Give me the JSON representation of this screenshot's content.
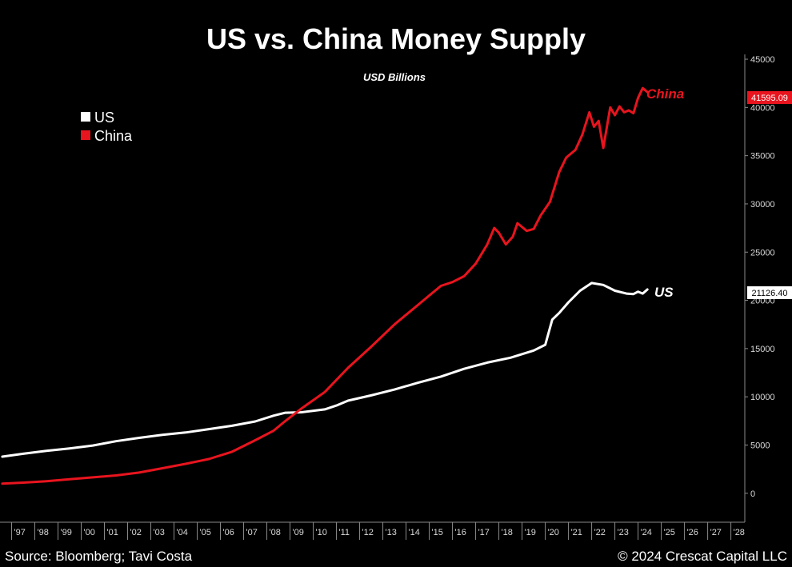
{
  "colors": {
    "background": "#000000",
    "us": "#ffffff",
    "china": "#e8141e",
    "axis": "#8a8a8a",
    "badge_text": "#ffffff"
  },
  "header": {
    "title": "US vs. China Money Supply"
  },
  "footer": {
    "source": "Source: Bloomberg; Tavi Costa",
    "copyright": "© 2024 Crescat Capital LLC"
  },
  "chart_data": {
    "type": "line",
    "title": "US vs. China Money Supply",
    "subtitle": "USD Billions",
    "ylim": [
      -3000,
      45500
    ],
    "xlim": [
      1996.5,
      2028.6
    ],
    "grid": false,
    "legend_position": "top-left",
    "y_ticks": [
      0,
      5000,
      10000,
      15000,
      20000,
      25000,
      30000,
      35000,
      40000,
      45000
    ],
    "x_ticks": [
      {
        "x": 1997,
        "label": "'97"
      },
      {
        "x": 1998,
        "label": "'98"
      },
      {
        "x": 1999,
        "label": "'99"
      },
      {
        "x": 2000,
        "label": "'00"
      },
      {
        "x": 2001,
        "label": "'01"
      },
      {
        "x": 2002,
        "label": "'02"
      },
      {
        "x": 2003,
        "label": "'03"
      },
      {
        "x": 2004,
        "label": "'04"
      },
      {
        "x": 2005,
        "label": "'05"
      },
      {
        "x": 2006,
        "label": "'06"
      },
      {
        "x": 2007,
        "label": "'07"
      },
      {
        "x": 2008,
        "label": "'08"
      },
      {
        "x": 2009,
        "label": "'09"
      },
      {
        "x": 2010,
        "label": "'10"
      },
      {
        "x": 2011,
        "label": "'11"
      },
      {
        "x": 2012,
        "label": "'12"
      },
      {
        "x": 2013,
        "label": "'13"
      },
      {
        "x": 2014,
        "label": "'14"
      },
      {
        "x": 2015,
        "label": "'15"
      },
      {
        "x": 2016,
        "label": "'16"
      },
      {
        "x": 2017,
        "label": "'17"
      },
      {
        "x": 2018,
        "label": "'18"
      },
      {
        "x": 2019,
        "label": "'19"
      },
      {
        "x": 2020,
        "label": "'20"
      },
      {
        "x": 2021,
        "label": "'21"
      },
      {
        "x": 2022,
        "label": "'22"
      },
      {
        "x": 2023,
        "label": "'23"
      },
      {
        "x": 2024,
        "label": "'24"
      },
      {
        "x": 2025,
        "label": "'25"
      },
      {
        "x": 2026,
        "label": "'26"
      },
      {
        "x": 2027,
        "label": "'27"
      },
      {
        "x": 2028,
        "label": "'28"
      }
    ],
    "series": [
      {
        "name": "US",
        "color": "#ffffff",
        "end_label": "US",
        "last_value_label": "21126.40",
        "points": [
          [
            1996.6,
            3800
          ],
          [
            1997.5,
            4100
          ],
          [
            1998.5,
            4400
          ],
          [
            1999.5,
            4650
          ],
          [
            2000.5,
            4950
          ],
          [
            2001.5,
            5400
          ],
          [
            2002.5,
            5750
          ],
          [
            2003.5,
            6050
          ],
          [
            2004.5,
            6300
          ],
          [
            2005.5,
            6650
          ],
          [
            2006.5,
            7000
          ],
          [
            2007.5,
            7450
          ],
          [
            2008.3,
            8050
          ],
          [
            2008.8,
            8350
          ],
          [
            2009.5,
            8400
          ],
          [
            2010.5,
            8700
          ],
          [
            2011.0,
            9100
          ],
          [
            2011.5,
            9600
          ],
          [
            2012.5,
            10150
          ],
          [
            2013.5,
            10750
          ],
          [
            2014.5,
            11450
          ],
          [
            2015.5,
            12100
          ],
          [
            2016.5,
            12900
          ],
          [
            2017.5,
            13550
          ],
          [
            2018.5,
            14050
          ],
          [
            2019.5,
            14800
          ],
          [
            2020.0,
            15400
          ],
          [
            2020.3,
            18000
          ],
          [
            2020.6,
            18700
          ],
          [
            2021.0,
            19800
          ],
          [
            2021.5,
            21000
          ],
          [
            2022.0,
            21800
          ],
          [
            2022.5,
            21600
          ],
          [
            2023.0,
            21000
          ],
          [
            2023.5,
            20700
          ],
          [
            2023.8,
            20650
          ],
          [
            2024.0,
            20900
          ],
          [
            2024.2,
            20700
          ],
          [
            2024.4,
            21126
          ]
        ]
      },
      {
        "name": "China",
        "color": "#e8141e",
        "end_label": "China",
        "last_value_label": "41595.09",
        "points": [
          [
            1996.6,
            1000
          ],
          [
            1997.5,
            1100
          ],
          [
            1998.5,
            1250
          ],
          [
            1999.5,
            1450
          ],
          [
            2000.5,
            1650
          ],
          [
            2001.5,
            1850
          ],
          [
            2002.5,
            2150
          ],
          [
            2003.5,
            2600
          ],
          [
            2004.5,
            3050
          ],
          [
            2005.5,
            3550
          ],
          [
            2006.5,
            4300
          ],
          [
            2007.5,
            5500
          ],
          [
            2008.3,
            6500
          ],
          [
            2008.8,
            7500
          ],
          [
            2009.5,
            8800
          ],
          [
            2010.5,
            10500
          ],
          [
            2011.5,
            13000
          ],
          [
            2012.5,
            15200
          ],
          [
            2013.5,
            17500
          ],
          [
            2014.5,
            19500
          ],
          [
            2015.0,
            20500
          ],
          [
            2015.5,
            21500
          ],
          [
            2016.0,
            21900
          ],
          [
            2016.5,
            22500
          ],
          [
            2017.0,
            23800
          ],
          [
            2017.5,
            25800
          ],
          [
            2017.8,
            27500
          ],
          [
            2018.0,
            27000
          ],
          [
            2018.3,
            25800
          ],
          [
            2018.6,
            26600
          ],
          [
            2018.8,
            28000
          ],
          [
            2019.2,
            27200
          ],
          [
            2019.5,
            27400
          ],
          [
            2019.8,
            28800
          ],
          [
            2020.2,
            30200
          ],
          [
            2020.6,
            33300
          ],
          [
            2020.9,
            34800
          ],
          [
            2021.3,
            35600
          ],
          [
            2021.6,
            37200
          ],
          [
            2021.9,
            39500
          ],
          [
            2022.1,
            38000
          ],
          [
            2022.3,
            38600
          ],
          [
            2022.5,
            35800
          ],
          [
            2022.8,
            40000
          ],
          [
            2023.0,
            39200
          ],
          [
            2023.2,
            40100
          ],
          [
            2023.4,
            39500
          ],
          [
            2023.6,
            39700
          ],
          [
            2023.8,
            39400
          ],
          [
            2024.0,
            41000
          ],
          [
            2024.2,
            42000
          ],
          [
            2024.4,
            41595
          ]
        ]
      }
    ]
  }
}
